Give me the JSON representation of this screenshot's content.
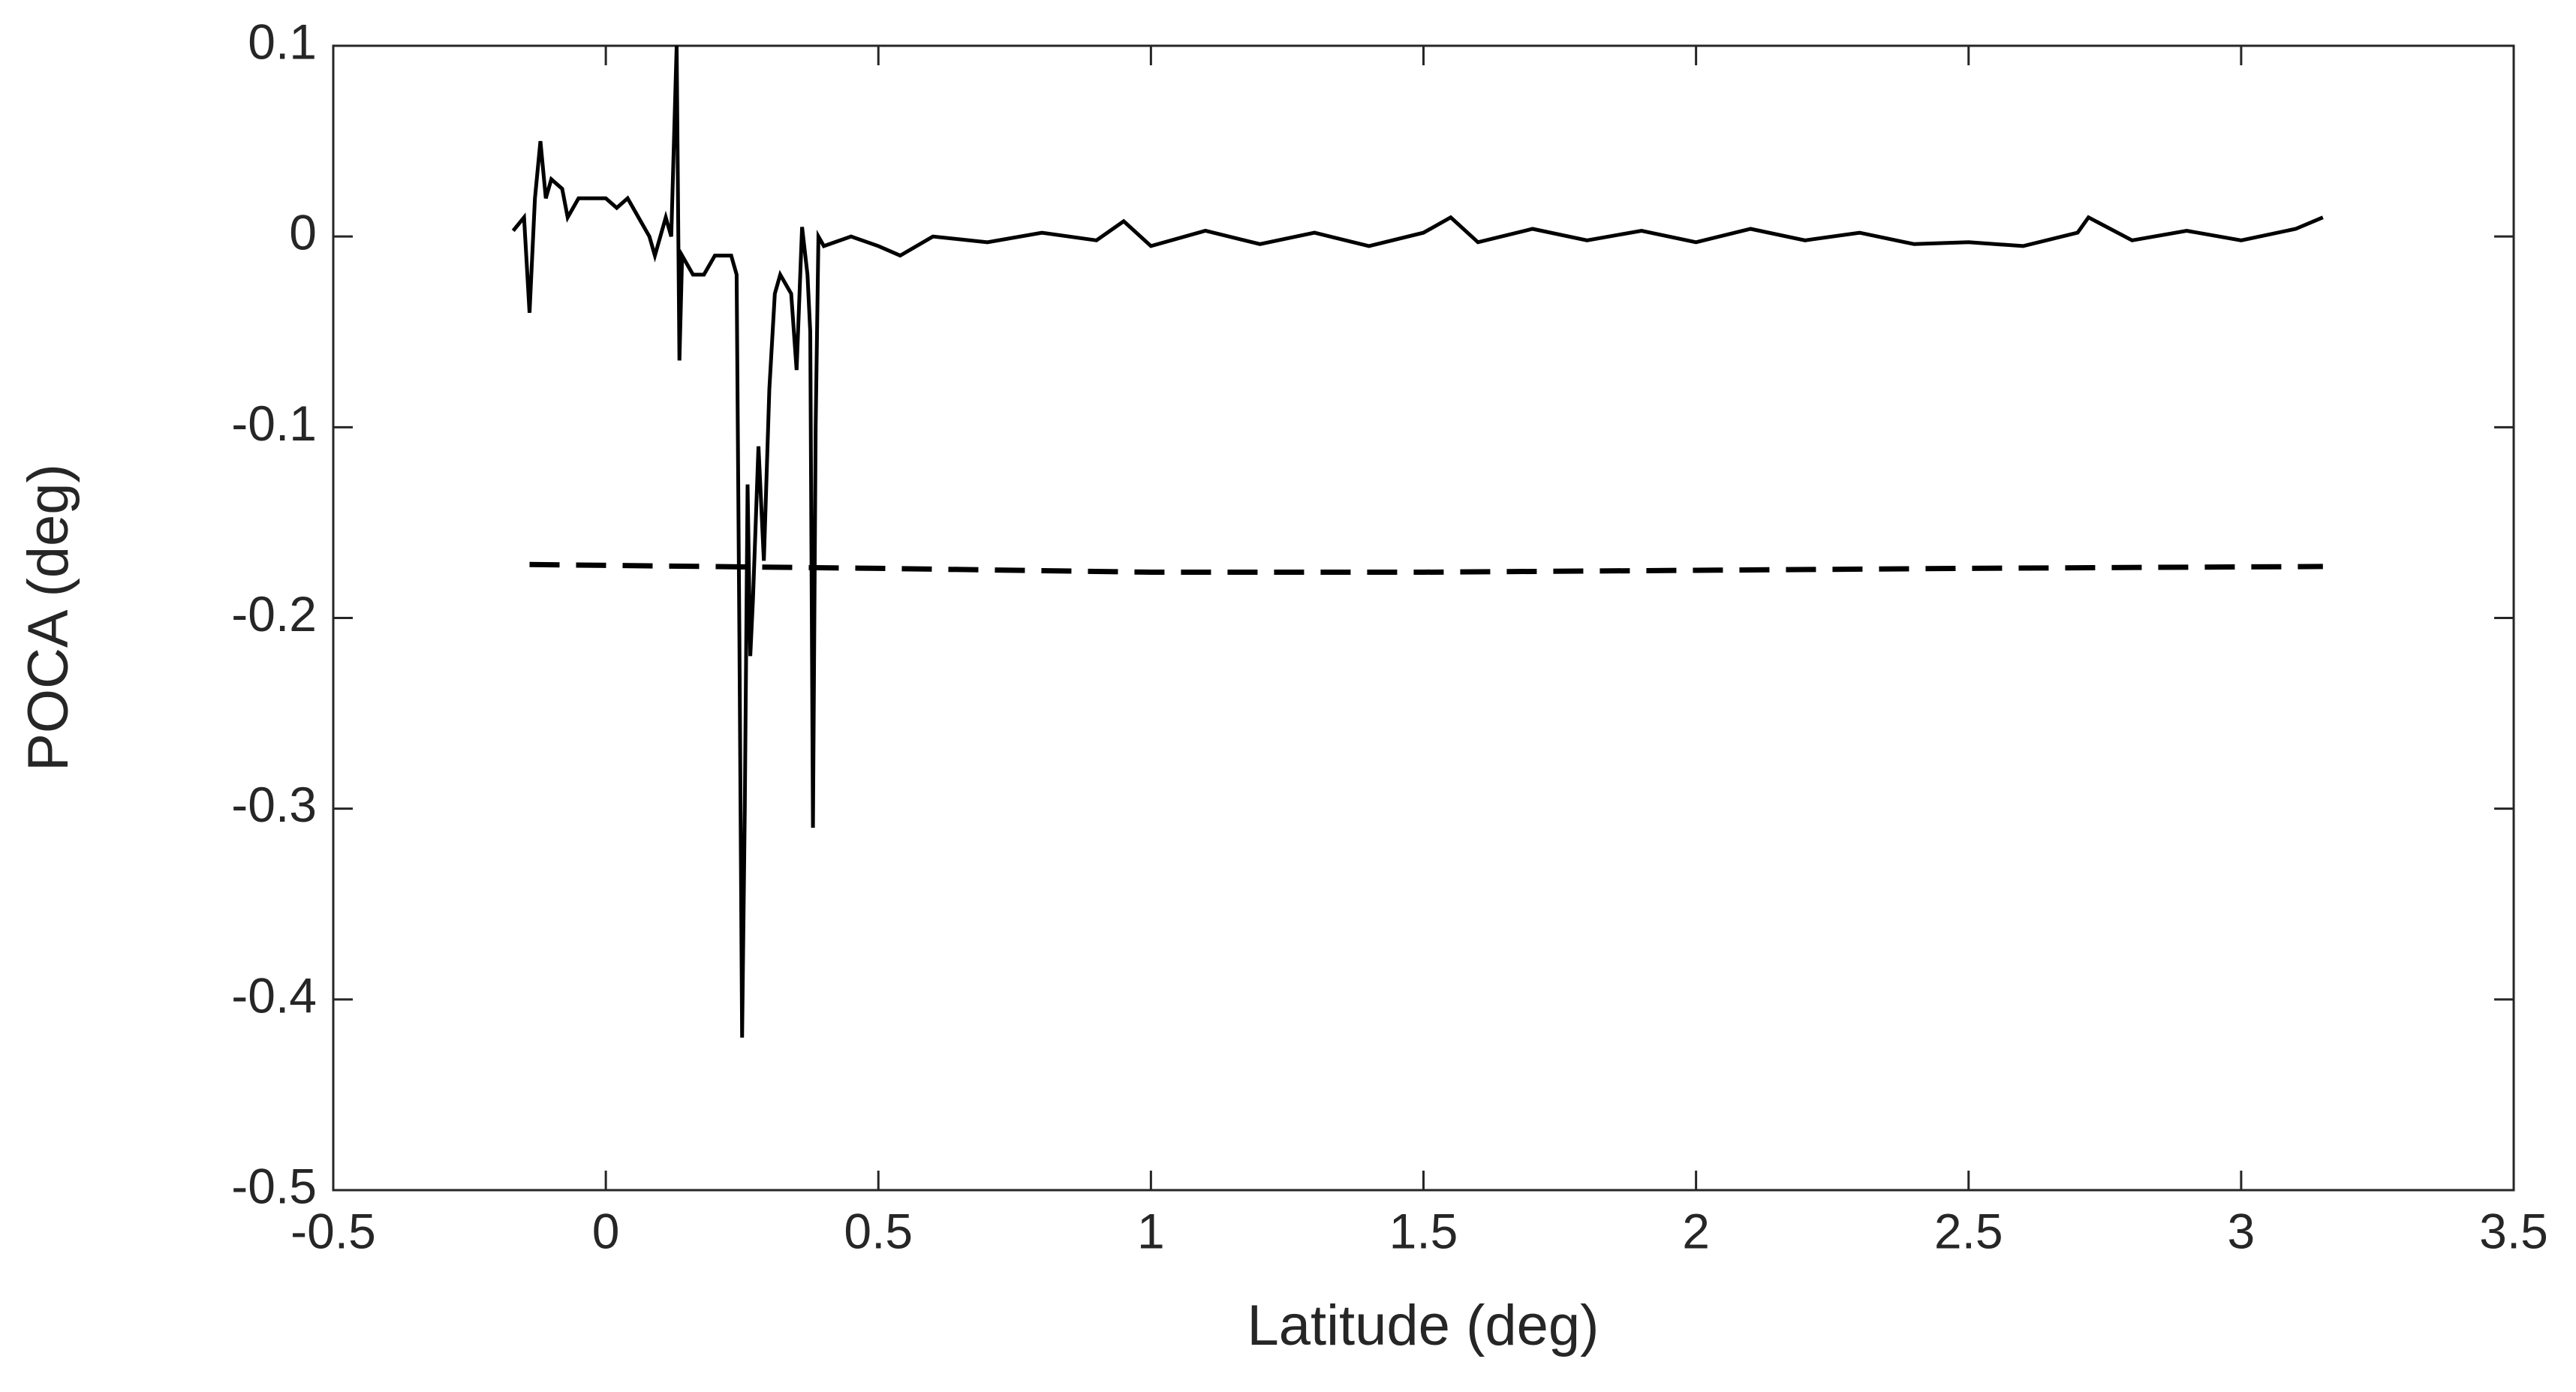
{
  "chart_data": {
    "type": "line",
    "xlabel": "Latitude (deg)",
    "ylabel": "POCA (deg)",
    "xlim": [
      -0.5,
      3.5
    ],
    "xticks": [
      -0.5,
      0,
      0.5,
      1,
      1.5,
      2,
      2.5,
      3,
      3.5
    ],
    "ylim": [
      -0.5,
      0.1
    ],
    "yticks": [
      -0.5,
      -0.4,
      -0.3,
      -0.2,
      -0.1,
      0,
      0.1
    ],
    "grid": false,
    "box": true,
    "series": [
      {
        "color": "#000000",
        "line_style": "solid",
        "x": [
          -0.17,
          -0.15,
          -0.14,
          -0.13,
          -0.12,
          -0.11,
          -0.1,
          -0.08,
          -0.07,
          -0.05,
          -0.02,
          0,
          0.02,
          0.04,
          0.06,
          0.08,
          0.09,
          0.11,
          0.12,
          0.13,
          0.135,
          0.14,
          0.16,
          0.18,
          0.2,
          0.23,
          0.24,
          0.245,
          0.25,
          0.255,
          0.26,
          0.265,
          0.27,
          0.28,
          0.29,
          0.3,
          0.31,
          0.32,
          0.34,
          0.35,
          0.36,
          0.37,
          0.375,
          0.38,
          0.385,
          0.39,
          0.4,
          0.45,
          0.5,
          0.54,
          0.6,
          0.7,
          0.8,
          0.9,
          0.95,
          1,
          1.1,
          1.2,
          1.3,
          1.4,
          1.5,
          1.55,
          1.6,
          1.7,
          1.8,
          1.9,
          2,
          2.1,
          2.2,
          2.3,
          2.4,
          2.5,
          2.6,
          2.7,
          2.72,
          2.8,
          2.9,
          3,
          3.1,
          3.15
        ],
        "values": [
          0.003,
          0.01,
          -0.04,
          0.02,
          0.05,
          0.02,
          0.03,
          0.025,
          0.01,
          0.02,
          0.02,
          0.02,
          0.015,
          0.02,
          0.01,
          0,
          -0.01,
          0.01,
          0,
          0.1,
          -0.065,
          -0.01,
          -0.02,
          -0.02,
          -0.01,
          -0.01,
          -0.02,
          -0.21,
          -0.42,
          -0.3,
          -0.13,
          -0.22,
          -0.19,
          -0.11,
          -0.17,
          -0.08,
          -0.03,
          -0.02,
          -0.03,
          -0.07,
          0.005,
          -0.02,
          -0.05,
          -0.31,
          -0.1,
          0,
          -0.005,
          0,
          -0.005,
          -0.01,
          0,
          -0.003,
          0.002,
          -0.002,
          0.008,
          -0.005,
          0.003,
          -0.004,
          0.002,
          -0.005,
          0.002,
          0.01,
          -0.003,
          0.004,
          -0.002,
          0.003,
          -0.003,
          0.004,
          -0.002,
          0.002,
          -0.004,
          -0.003,
          -0.005,
          0.002,
          0.01,
          -0.002,
          0.003,
          -0.002,
          0.004,
          0.01
        ]
      },
      {
        "color": "#000000",
        "line_style": "dashed",
        "x": [
          -0.14,
          0.5,
          1,
          1.5,
          2,
          2.5,
          3.15
        ],
        "values": [
          -0.172,
          -0.174,
          -0.176,
          -0.176,
          -0.175,
          -0.174,
          -0.173
        ]
      }
    ]
  }
}
